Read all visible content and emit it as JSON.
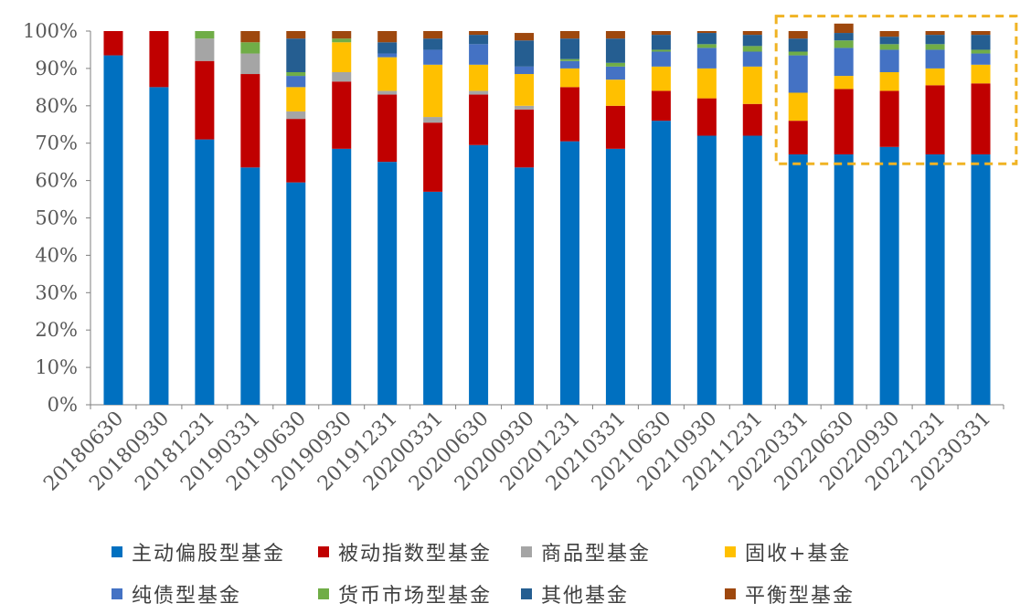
{
  "chart_data": {
    "type": "bar",
    "stacked": true,
    "categories": [
      "20180630",
      "20180930",
      "20181231",
      "20190331",
      "20190630",
      "20190930",
      "20191231",
      "20200331",
      "20200630",
      "20200930",
      "20201231",
      "20210331",
      "20210630",
      "20210930",
      "20211231",
      "20220331",
      "20220630",
      "20220930",
      "20221231",
      "20230331"
    ],
    "ylim": [
      0,
      100
    ],
    "y_ticks": [
      "0%",
      "10%",
      "20%",
      "30%",
      "40%",
      "50%",
      "60%",
      "70%",
      "80%",
      "90%",
      "100%"
    ],
    "legend_position": "bottom",
    "grid": false,
    "highlight_box": {
      "from_category": "20220331",
      "to_category": "20230331",
      "y_min": 64.5,
      "y_max": 104,
      "color": "#F0B323"
    },
    "series": [
      {
        "name": "主动偏股型基金",
        "color": "#0070C0",
        "values": [
          93.5,
          85,
          71,
          63.5,
          59.5,
          68.5,
          65,
          57,
          69.5,
          63.5,
          70.5,
          68.5,
          76,
          72,
          72,
          67,
          67,
          69,
          67,
          67
        ]
      },
      {
        "name": "被动指数型基金",
        "color": "#C00000",
        "values": [
          6.5,
          15,
          21,
          25,
          17,
          18,
          18,
          18.5,
          13.5,
          15.5,
          14.5,
          11.5,
          8,
          10,
          8.5,
          9,
          17.5,
          15,
          18.5,
          19
        ]
      },
      {
        "name": "商品型基金",
        "color": "#A5A5A5",
        "values": [
          0,
          0,
          6,
          5.5,
          2,
          2.5,
          1,
          1.5,
          1,
          1,
          0,
          0,
          0,
          0,
          0,
          0,
          0,
          0,
          0,
          0
        ]
      },
      {
        "name": "固收+基金",
        "color": "#FFC000",
        "values": [
          0,
          0,
          0,
          0,
          6.5,
          8,
          9,
          14,
          7,
          8.5,
          5,
          7,
          6.5,
          8,
          10,
          7.5,
          3.5,
          5,
          4.5,
          5
        ]
      },
      {
        "name": "纯债型基金",
        "color": "#4472C4",
        "values": [
          0,
          0,
          0,
          0,
          3,
          0,
          1,
          4,
          5.5,
          2,
          2,
          3.5,
          4,
          5.5,
          4,
          10,
          7.5,
          6,
          5,
          3
        ]
      },
      {
        "name": "货币市场型基金",
        "color": "#70AD47",
        "values": [
          0,
          0,
          2,
          3,
          1,
          1,
          0,
          0,
          0,
          0,
          0.5,
          1,
          0.5,
          1,
          1.5,
          1,
          2,
          1.5,
          1.5,
          1
        ]
      },
      {
        "name": "其他基金",
        "color": "#255E91",
        "values": [
          0,
          0,
          0,
          0,
          9,
          0,
          3,
          3,
          2.5,
          7,
          5.5,
          6.5,
          4,
          3,
          3,
          3.5,
          2,
          2,
          2.5,
          4
        ]
      },
      {
        "name": "平衡型基金",
        "color": "#9E480E",
        "values": [
          0,
          0,
          0,
          3,
          2,
          2,
          3,
          2,
          1,
          2,
          2,
          2,
          1,
          0.5,
          1,
          2,
          2.5,
          1.5,
          1,
          1
        ]
      }
    ]
  }
}
